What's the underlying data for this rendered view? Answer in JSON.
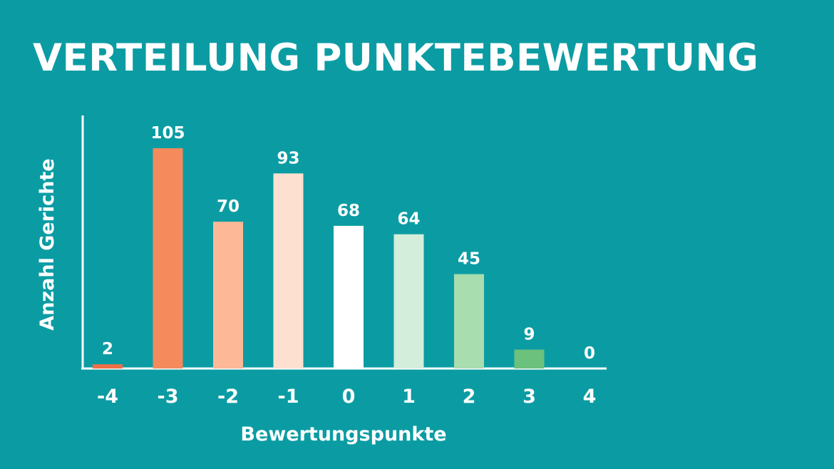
{
  "colors": {
    "background": "#0B9CA3",
    "text": "#FFFFFF",
    "axis": "#FFFFFF",
    "bars": [
      "#F26F45",
      "#F58A5C",
      "#FDB898",
      "#FDE0D0",
      "#FFFFFF",
      "#D3EEDB",
      "#A8DDB0",
      "#6CC17C",
      "#6CC17C"
    ]
  },
  "chart_data": {
    "type": "bar",
    "title": "VERTEILUNG PUNKTEBEWERTUNG",
    "xlabel": "Bewertungspunkte",
    "ylabel": "Anzahl Gerichte",
    "categories": [
      "-4",
      "-3",
      "-2",
      "-1",
      "0",
      "1",
      "2",
      "3",
      "4"
    ],
    "values": [
      2,
      105,
      70,
      93,
      68,
      64,
      45,
      9,
      0
    ],
    "data_labels": [
      "2",
      "105",
      "70",
      "93",
      "68",
      "64",
      "45",
      "9",
      "0"
    ],
    "ylim": [
      0,
      105
    ],
    "grid": false,
    "legend": "none"
  }
}
